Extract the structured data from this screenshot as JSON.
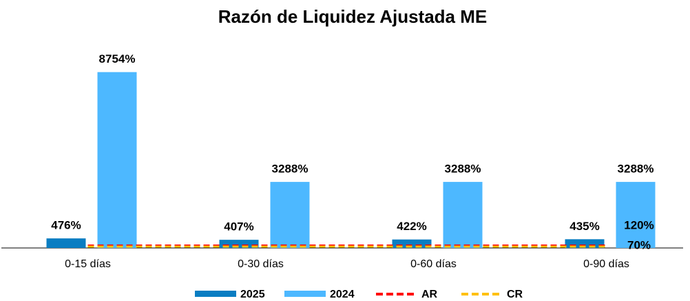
{
  "chart_data": {
    "type": "bar",
    "title": "Razón de Liquidez Ajustada ME",
    "categories": [
      "0-15 días",
      "0-30 días",
      "0-60 días",
      "0-90 días"
    ],
    "ylim": [
      0,
      9600
    ],
    "series": [
      {
        "name": "2025",
        "type": "bar",
        "color": "#0a7dc2",
        "values": [
          476,
          407,
          422,
          435
        ],
        "value_labels": [
          "476%",
          "407%",
          "422%",
          "435%"
        ]
      },
      {
        "name": "2024",
        "type": "bar",
        "color": "#4db8ff",
        "values": [
          8754,
          3288,
          3288,
          3288
        ],
        "value_labels": [
          "8754%",
          "3288%",
          "3288%",
          "3288%"
        ]
      },
      {
        "name": "AR",
        "type": "line",
        "dashed": true,
        "color": "#ff0000",
        "values": [
          120,
          120,
          120,
          120
        ],
        "value_labels": [
          null,
          null,
          null,
          "120%"
        ]
      },
      {
        "name": "CR",
        "type": "line",
        "dashed": true,
        "color": "#ffc000",
        "values": [
          70,
          70,
          70,
          70
        ],
        "value_labels": [
          null,
          null,
          null,
          "70%"
        ]
      }
    ],
    "legend": "bottom"
  }
}
